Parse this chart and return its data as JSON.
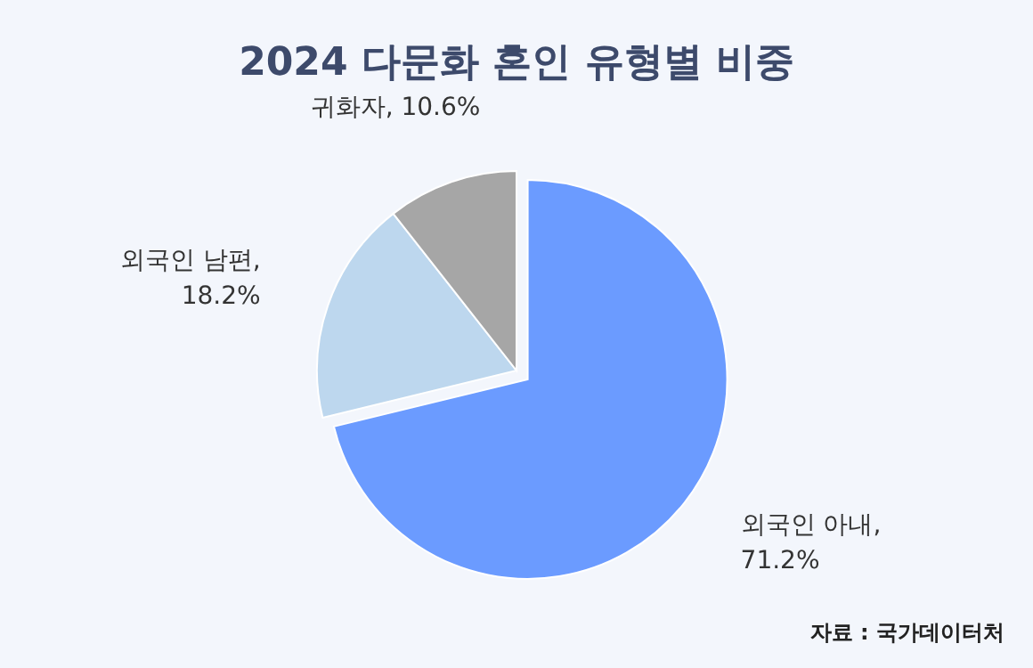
{
  "chart_data": {
    "type": "pie",
    "title": "2024 다문화 혼인 유형별 비중",
    "categories": [
      "외국인 아내",
      "외국인 남편",
      "귀화자"
    ],
    "value_labels": [
      ", 71.2%",
      ", 18.2%",
      ", 10.6%"
    ],
    "values": [
      71.2,
      18.2,
      10.6
    ],
    "colors": [
      "#6b9bff",
      "#bdd7ee",
      "#a6a6a6"
    ],
    "annotations": [
      "자료 : 국가데이터처"
    ]
  }
}
